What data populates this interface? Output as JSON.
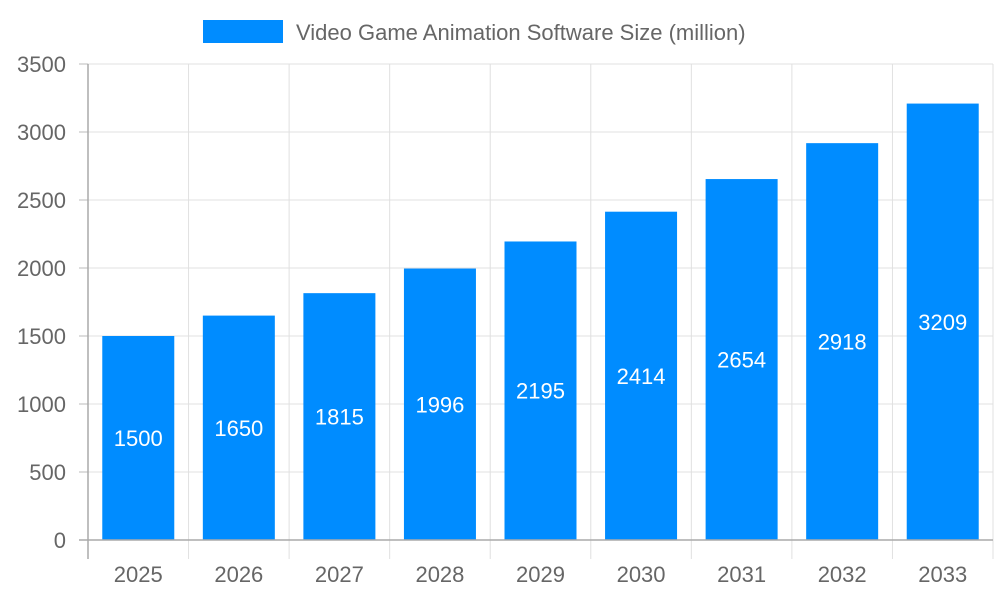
{
  "chart_data": {
    "type": "bar",
    "categories": [
      "2025",
      "2026",
      "2027",
      "2028",
      "2029",
      "2030",
      "2031",
      "2032",
      "2033"
    ],
    "series": [
      {
        "name": "Video Game Animation Software Size (million)",
        "values": [
          1500,
          1650,
          1815,
          1996,
          2195,
          2414,
          2654,
          2918,
          3209
        ],
        "color": "#008cff"
      }
    ],
    "ylim": [
      0,
      3500
    ],
    "yticks": [
      0,
      500,
      1000,
      1500,
      2000,
      2500,
      3000,
      3500
    ],
    "grid": true,
    "legend": "top-center",
    "data_labels": true,
    "xlabel": "",
    "ylabel": ""
  }
}
